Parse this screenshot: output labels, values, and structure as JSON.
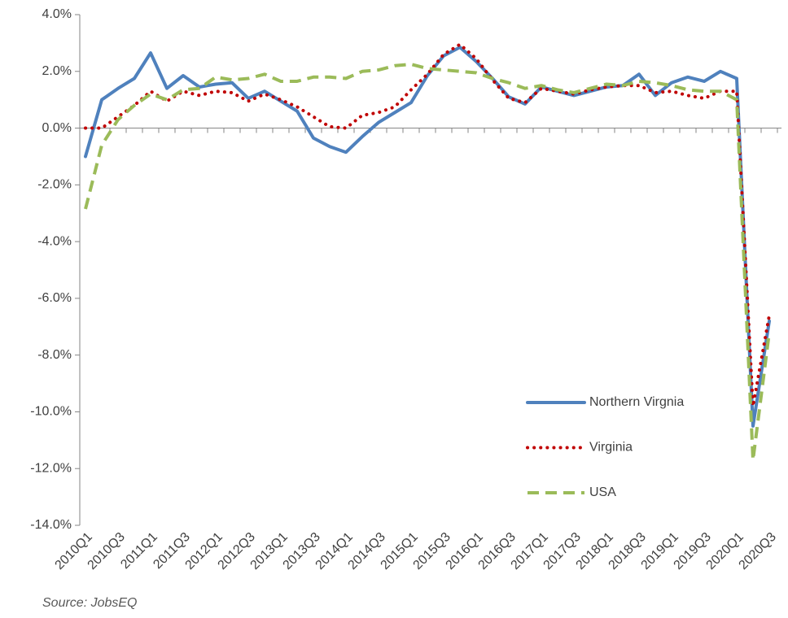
{
  "chart_data": {
    "type": "line",
    "source": "Source: JobsEQ",
    "categories": [
      "2010Q1",
      null,
      "2010Q3",
      null,
      "2011Q1",
      null,
      "2011Q3",
      null,
      "2012Q1",
      null,
      "2012Q3",
      null,
      "2013Q1",
      null,
      "2013Q3",
      null,
      "2014Q1",
      null,
      "2014Q3",
      null,
      "2015Q1",
      null,
      "2015Q3",
      null,
      "2016Q1",
      null,
      "2016Q3",
      null,
      "2017Q1",
      null,
      "2017Q3",
      null,
      "2018Q1",
      null,
      "2018Q3",
      null,
      "2019Q1",
      null,
      "2019Q3",
      null,
      "2020Q1",
      null,
      "2020Q3"
    ],
    "series": [
      {
        "name": "Northern Virgnia",
        "color": "#4f81bd",
        "style": "solid",
        "values": [
          -1.0,
          1.0,
          1.4,
          1.75,
          2.65,
          1.4,
          1.85,
          1.45,
          1.55,
          1.6,
          1.05,
          1.3,
          0.95,
          0.6,
          -0.35,
          -0.65,
          -0.85,
          -0.3,
          0.2,
          0.55,
          0.9,
          1.85,
          2.55,
          2.85,
          2.35,
          1.75,
          1.1,
          0.85,
          1.45,
          1.3,
          1.15,
          1.3,
          1.45,
          1.5,
          1.9,
          1.15,
          1.6,
          1.8,
          1.65,
          2.0,
          1.75,
          -10.5,
          -6.8
        ]
      },
      {
        "name": "Virginia",
        "color": "#c00000",
        "style": "dotted",
        "values": [
          0.0,
          0.0,
          0.4,
          0.8,
          1.3,
          0.95,
          1.3,
          1.15,
          1.3,
          1.25,
          0.95,
          1.2,
          1.0,
          0.75,
          0.4,
          0.05,
          0.0,
          0.45,
          0.55,
          0.75,
          1.35,
          1.9,
          2.6,
          2.95,
          2.45,
          1.7,
          1.05,
          0.9,
          1.4,
          1.3,
          1.2,
          1.35,
          1.45,
          1.5,
          1.5,
          1.25,
          1.3,
          1.15,
          1.05,
          1.3,
          1.3,
          -9.8,
          -6.6
        ]
      },
      {
        "name": "USA",
        "color": "#9bbb59",
        "style": "dashed",
        "values": [
          -2.85,
          -0.6,
          0.3,
          0.8,
          1.2,
          1.0,
          1.35,
          1.4,
          1.8,
          1.7,
          1.75,
          1.9,
          1.65,
          1.65,
          1.8,
          1.8,
          1.75,
          2.0,
          2.05,
          2.2,
          2.25,
          2.1,
          2.05,
          2.0,
          1.95,
          1.75,
          1.6,
          1.4,
          1.5,
          1.35,
          1.25,
          1.4,
          1.55,
          1.5,
          1.65,
          1.6,
          1.5,
          1.35,
          1.3,
          1.3,
          1.0,
          -11.7,
          -7.2
        ]
      }
    ],
    "ylim": [
      -14,
      4
    ],
    "yticks": [
      {
        "value": -14,
        "label": "-14.0%"
      },
      {
        "value": -12,
        "label": "-12.0%"
      },
      {
        "value": -10,
        "label": "-10.0%"
      },
      {
        "value": -8,
        "label": "-8.0%"
      },
      {
        "value": -6,
        "label": "-6.0%"
      },
      {
        "value": -4,
        "label": "-4.0%"
      },
      {
        "value": -2,
        "label": "-2.0%"
      },
      {
        "value": 0,
        "label": "0.0%"
      },
      {
        "value": 2,
        "label": "2.0%"
      },
      {
        "value": 4,
        "label": "4.0%"
      }
    ],
    "grid": false,
    "legend": "lower right"
  }
}
